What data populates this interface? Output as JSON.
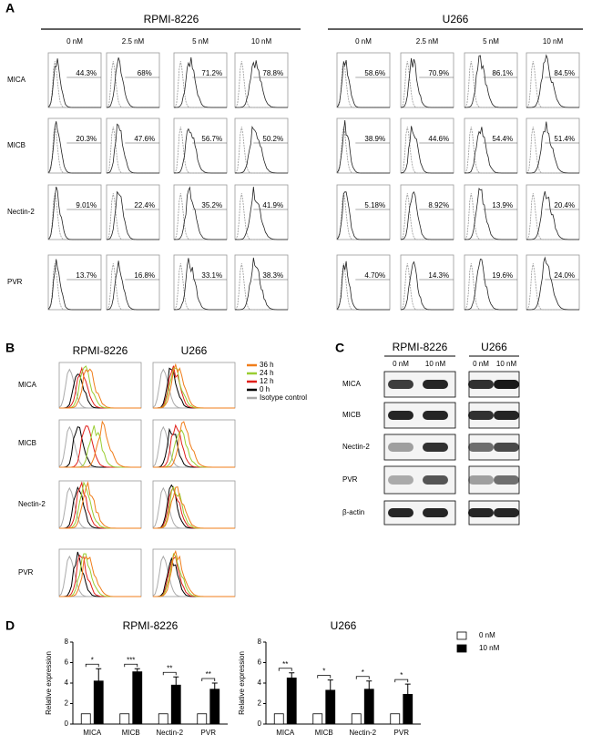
{
  "panel_a": {
    "label": "A",
    "groups": [
      {
        "title": "RPMI-8226",
        "columns": [
          "0 nM",
          "2.5 nM",
          "5 nM",
          "10 nM"
        ],
        "rows": [
          {
            "marker": "MICA",
            "percents": [
              "44.3%",
              "68%",
              "71.2%",
              "78.8%"
            ]
          },
          {
            "marker": "MICB",
            "percents": [
              "20.3%",
              "47.6%",
              "56.7%",
              "50.2%"
            ]
          },
          {
            "marker": "Nectin-2",
            "percents": [
              "9.01%",
              "22.4%",
              "35.2%",
              "41.9%"
            ]
          },
          {
            "marker": "PVR",
            "percents": [
              "13.7%",
              "16.8%",
              "33.1%",
              "38.3%"
            ]
          }
        ]
      },
      {
        "title": "U266",
        "columns": [
          "0 nM",
          "2.5 nM",
          "5 nM",
          "10 nM"
        ],
        "rows": [
          {
            "percents": [
              "58.6%",
              "70.9%",
              "86.1%",
              "84.5%"
            ]
          },
          {
            "percents": [
              "38.9%",
              "44.6%",
              "54.4%",
              "51.4%"
            ]
          },
          {
            "percents": [
              "5.18%",
              "8.92%",
              "13.9%",
              "20.4%"
            ]
          },
          {
            "percents": [
              "4.70%",
              "14.3%",
              "19.6%",
              "24.0%"
            ]
          }
        ]
      }
    ]
  },
  "panel_b": {
    "label": "B",
    "cell_lines": [
      "RPMI-8226",
      "U266"
    ],
    "markers": [
      "MICA",
      "MICB",
      "Nectin-2",
      "PVR"
    ],
    "legend": [
      {
        "label": "36 h",
        "color": "#f07d1a"
      },
      {
        "label": "24 h",
        "color": "#9acd32"
      },
      {
        "label": "12 h",
        "color": "#e0201b"
      },
      {
        "label": "0 h",
        "color": "#000000"
      },
      {
        "label": "Isotype control",
        "color": "#aaaaaa"
      }
    ]
  },
  "panel_c": {
    "label": "C",
    "cell_lines": [
      "RPMI-8226",
      "U266"
    ],
    "lanes": [
      "0 nM",
      "10 nM",
      "0 nM",
      "10 nM"
    ],
    "proteins": [
      "MICA",
      "MICB",
      "Nectin-2",
      "PVR",
      "β-actin"
    ]
  },
  "panel_d": {
    "label": "D"
  },
  "chart_data": [
    {
      "type": "bar",
      "title": "RPMI-8226",
      "y_label": "Relative expression",
      "categories": [
        "MICA",
        "MICB",
        "Nectin-2",
        "PVR"
      ],
      "series": [
        {
          "color": "#ffffff",
          "values": [
            1,
            1,
            1,
            1
          ]
        },
        {
          "color": "#000000",
          "values": [
            4.2,
            5.1,
            3.8,
            3.4
          ],
          "errors": [
            1.2,
            0.3,
            0.8,
            0.6
          ]
        }
      ],
      "significance": [
        "*",
        "***",
        "**",
        "**"
      ],
      "ylim": [
        0,
        8
      ],
      "yticks": [
        0,
        2,
        4,
        6,
        8
      ]
    },
    {
      "type": "bar",
      "title": "U266",
      "y_label": "Relative expression",
      "categories": [
        "MICA",
        "MICB",
        "Nectin-2",
        "PVR"
      ],
      "series": [
        {
          "name": "0 nM",
          "color": "#ffffff",
          "values": [
            1,
            1,
            1,
            1
          ]
        },
        {
          "name": "10 nM",
          "color": "#000000",
          "values": [
            4.5,
            3.3,
            3.4,
            2.9
          ],
          "errors": [
            0.5,
            1.0,
            0.8,
            1.0
          ]
        }
      ],
      "significance": [
        "**",
        "*",
        "*",
        "*"
      ],
      "ylim": [
        0,
        8
      ],
      "yticks": [
        0,
        2,
        4,
        6,
        8
      ]
    }
  ]
}
